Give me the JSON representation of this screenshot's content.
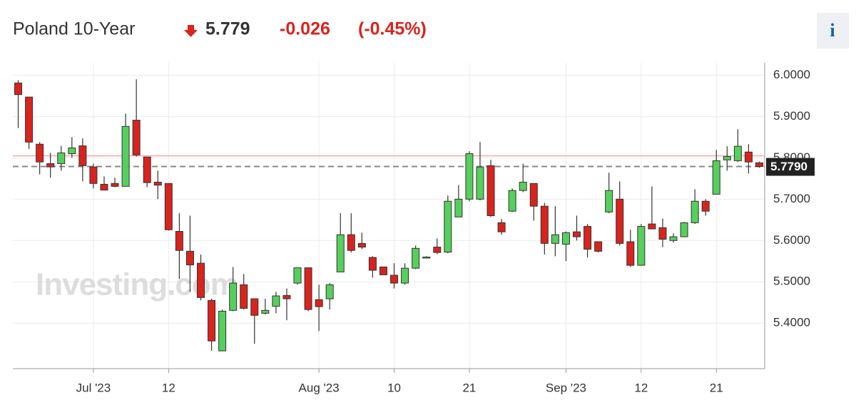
{
  "header": {
    "title": "Poland 10-Year",
    "price": "5.779",
    "change": "-0.026",
    "change_pct": "(-0.45%)",
    "info": "i"
  },
  "chart_data": {
    "type": "candlestick",
    "watermark": "Investing.com",
    "categories": [
      null,
      null,
      null,
      null,
      null,
      null,
      null,
      "Jul '23",
      null,
      null,
      null,
      null,
      null,
      null,
      "12",
      null,
      null,
      null,
      null,
      null,
      null,
      null,
      null,
      null,
      null,
      null,
      null,
      null,
      "Aug '23",
      null,
      null,
      null,
      null,
      null,
      null,
      "10",
      null,
      null,
      null,
      null,
      null,
      null,
      "21",
      null,
      null,
      null,
      null,
      null,
      null,
      null,
      null,
      "Sep '23",
      null,
      null,
      null,
      null,
      null,
      null,
      "12",
      null,
      null,
      null,
      null,
      null,
      null,
      "21",
      null,
      null,
      null,
      null
    ],
    "open": [
      5.981,
      5.947,
      5.833,
      5.786,
      5.786,
      5.81,
      5.829,
      5.778,
      5.736,
      5.738,
      5.731,
      5.891,
      5.802,
      5.741,
      5.738,
      5.622,
      5.574,
      5.545,
      5.455,
      5.333,
      5.431,
      5.493,
      5.459,
      5.424,
      5.441,
      5.467,
      5.497,
      5.534,
      5.457,
      5.459,
      5.524,
      5.614,
      5.593,
      5.559,
      5.536,
      5.516,
      5.497,
      5.533,
      5.559,
      5.584,
      5.572,
      5.657,
      5.7,
      5.7,
      5.781,
      5.643,
      5.671,
      5.721,
      5.738,
      5.683,
      5.593,
      5.591,
      5.621,
      5.634,
      5.597,
      5.669,
      5.7,
      5.597,
      5.54,
      5.64,
      5.631,
      5.6,
      5.609,
      5.643,
      5.695,
      5.712,
      5.795,
      5.793,
      5.814,
      5.788
    ],
    "high": [
      5.988,
      5.947,
      5.838,
      5.812,
      5.829,
      5.85,
      5.847,
      5.786,
      5.755,
      5.752,
      5.907,
      5.99,
      5.802,
      5.769,
      5.738,
      5.666,
      5.66,
      5.566,
      5.459,
      5.433,
      5.536,
      5.519,
      5.459,
      5.459,
      5.476,
      5.484,
      5.534,
      5.534,
      5.493,
      5.497,
      5.666,
      5.666,
      5.619,
      5.562,
      5.536,
      5.545,
      5.545,
      5.588,
      5.562,
      5.605,
      5.709,
      5.734,
      5.816,
      5.838,
      5.795,
      5.652,
      5.726,
      5.786,
      5.738,
      5.691,
      5.683,
      5.622,
      5.66,
      5.64,
      5.597,
      5.764,
      5.743,
      5.626,
      5.64,
      5.731,
      5.653,
      5.617,
      5.645,
      5.724,
      5.7,
      5.819,
      5.828,
      5.869,
      5.833,
      5.791
    ],
    "low": [
      5.872,
      5.821,
      5.76,
      5.752,
      5.769,
      5.8,
      5.743,
      5.726,
      5.721,
      5.729,
      5.731,
      5.803,
      5.729,
      5.7,
      5.624,
      5.507,
      5.476,
      5.455,
      5.333,
      5.333,
      5.429,
      5.433,
      5.35,
      5.421,
      5.424,
      5.407,
      5.493,
      5.429,
      5.381,
      5.433,
      5.524,
      5.571,
      5.579,
      5.51,
      5.517,
      5.484,
      5.493,
      5.531,
      5.557,
      5.567,
      5.569,
      5.657,
      5.695,
      5.697,
      5.657,
      5.614,
      5.669,
      5.717,
      5.648,
      5.566,
      5.562,
      5.55,
      5.6,
      5.559,
      5.571,
      5.666,
      5.588,
      5.536,
      5.54,
      5.628,
      5.584,
      5.595,
      5.609,
      5.64,
      5.66,
      5.712,
      5.769,
      5.79,
      5.762,
      5.776
    ],
    "close": [
      5.953,
      5.838,
      5.79,
      5.778,
      5.812,
      5.824,
      5.781,
      5.738,
      5.722,
      5.731,
      5.876,
      5.807,
      5.74,
      5.734,
      5.626,
      5.576,
      5.541,
      5.462,
      5.357,
      5.429,
      5.497,
      5.436,
      5.419,
      5.431,
      5.466,
      5.459,
      5.534,
      5.433,
      5.44,
      5.493,
      5.614,
      5.576,
      5.584,
      5.528,
      5.517,
      5.497,
      5.533,
      5.581,
      5.56,
      5.571,
      5.695,
      5.7,
      5.81,
      5.778,
      5.66,
      5.621,
      5.721,
      5.741,
      5.683,
      5.593,
      5.614,
      5.619,
      5.609,
      5.579,
      5.574,
      5.721,
      5.593,
      5.54,
      5.634,
      5.628,
      5.603,
      5.609,
      5.643,
      5.695,
      5.671,
      5.793,
      5.803,
      5.828,
      5.79,
      5.779
    ],
    "up_color": "#55d05c",
    "down_color": "#d9231d",
    "last_price": 5.779,
    "last_price_label": "5.7790",
    "prev_close": 5.805,
    "ylim": [
      5.29,
      6.03
    ],
    "yticks": [
      {
        "value": 5.4,
        "label": "5.4000"
      },
      {
        "value": 5.5,
        "label": "5.5000"
      },
      {
        "value": 5.6,
        "label": "5.6000"
      },
      {
        "value": 5.7,
        "label": "5.7000"
      },
      {
        "value": 5.8,
        "label": "5.8000"
      },
      {
        "value": 5.9,
        "label": "5.9000"
      },
      {
        "value": 6,
        "label": "6.0000"
      }
    ],
    "grid": true
  }
}
